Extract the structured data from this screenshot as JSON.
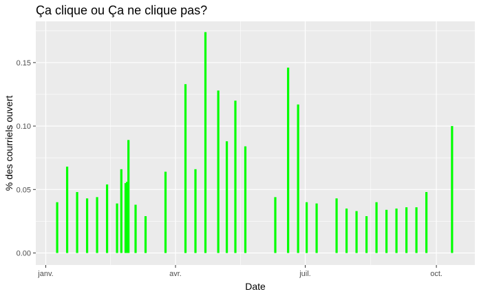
{
  "chart_data": {
    "type": "bar",
    "title": "Ça clique ou Ça ne clique pas?",
    "xlabel": "Date",
    "ylabel": "% des courriels ouvert",
    "ylim": [
      -0.0095,
      0.1825
    ],
    "xlim": [
      "2020-12-25",
      "2020-10-28"
    ],
    "yticks": [
      {
        "value": 0.0,
        "label": "0.00"
      },
      {
        "value": 0.05,
        "label": "0.05"
      },
      {
        "value": 0.1,
        "label": "0.10"
      },
      {
        "value": 0.15,
        "label": "0.15"
      }
    ],
    "xticks": [
      {
        "date": "2020-01-01",
        "label": "janv."
      },
      {
        "date": "2020-04-01",
        "label": "avr."
      },
      {
        "date": "2020-07-01",
        "label": "juil."
      },
      {
        "date": "2020-10-01",
        "label": "oct."
      }
    ],
    "grid": true,
    "panel_background": "#ebebeb",
    "bar_color": "#00ff00",
    "points": [
      {
        "date": "2020-01-09",
        "value": 0.04
      },
      {
        "date": "2020-01-16",
        "value": 0.068
      },
      {
        "date": "2020-01-23",
        "value": 0.048
      },
      {
        "date": "2020-01-30",
        "value": 0.043
      },
      {
        "date": "2020-02-06",
        "value": 0.044
      },
      {
        "date": "2020-02-13",
        "value": 0.054
      },
      {
        "date": "2020-02-20",
        "value": 0.039
      },
      {
        "date": "2020-02-23",
        "value": 0.066
      },
      {
        "date": "2020-02-26",
        "value": 0.055
      },
      {
        "date": "2020-02-27",
        "value": 0.056
      },
      {
        "date": "2020-02-28",
        "value": 0.089
      },
      {
        "date": "2020-03-04",
        "value": 0.038
      },
      {
        "date": "2020-03-11",
        "value": 0.029
      },
      {
        "date": "2020-03-25",
        "value": 0.064
      },
      {
        "date": "2020-04-08",
        "value": 0.133
      },
      {
        "date": "2020-04-15",
        "value": 0.066
      },
      {
        "date": "2020-04-22",
        "value": 0.174
      },
      {
        "date": "2020-05-01",
        "value": 0.128
      },
      {
        "date": "2020-05-07",
        "value": 0.088
      },
      {
        "date": "2020-05-13",
        "value": 0.12
      },
      {
        "date": "2020-05-20",
        "value": 0.084
      },
      {
        "date": "2020-06-10",
        "value": 0.044
      },
      {
        "date": "2020-06-19",
        "value": 0.146
      },
      {
        "date": "2020-06-26",
        "value": 0.117
      },
      {
        "date": "2020-07-02",
        "value": 0.04
      },
      {
        "date": "2020-07-09",
        "value": 0.039
      },
      {
        "date": "2020-07-23",
        "value": 0.043
      },
      {
        "date": "2020-07-30",
        "value": 0.035
      },
      {
        "date": "2020-08-06",
        "value": 0.033
      },
      {
        "date": "2020-08-13",
        "value": 0.029
      },
      {
        "date": "2020-08-20",
        "value": 0.04
      },
      {
        "date": "2020-08-27",
        "value": 0.034
      },
      {
        "date": "2020-09-03",
        "value": 0.035
      },
      {
        "date": "2020-09-10",
        "value": 0.036
      },
      {
        "date": "2020-09-17",
        "value": 0.036
      },
      {
        "date": "2020-09-24",
        "value": 0.048
      },
      {
        "date": "2020-10-12",
        "value": 0.1
      }
    ]
  }
}
